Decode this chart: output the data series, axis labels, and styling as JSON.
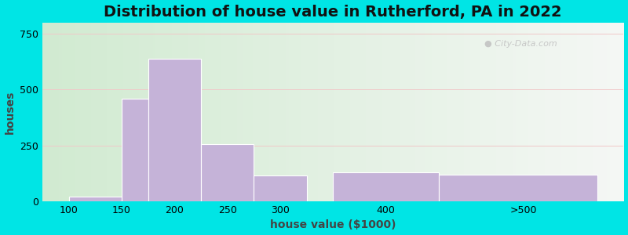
{
  "title": "Distribution of house value in Rutherford, PA in 2022",
  "xlabel": "house value ($1000)",
  "ylabel": "houses",
  "bar_lefts": [
    100,
    150,
    175,
    225,
    275,
    350,
    450
  ],
  "bar_rights": [
    150,
    175,
    225,
    275,
    325,
    450,
    600
  ],
  "bar_labels_x": [
    100,
    150,
    200,
    250,
    300,
    400,
    ">500"
  ],
  "bar_tick_positions": [
    100,
    150,
    200,
    250,
    300,
    400
  ],
  "bar_values": [
    20,
    460,
    640,
    255,
    115,
    130,
    120
  ],
  "bar_color": "#c5b3d8",
  "bar_edge_color": "#ffffff",
  "ylim": [
    0,
    800
  ],
  "yticks": [
    0,
    250,
    500,
    750
  ],
  "xlim": [
    75,
    625
  ],
  "background_outer": "#00e5e5",
  "grid_color": "#f0c8c8",
  "title_fontsize": 14,
  "axis_label_fontsize": 10,
  "tick_fontsize": 9,
  "watermark_text": "City-Data.com"
}
